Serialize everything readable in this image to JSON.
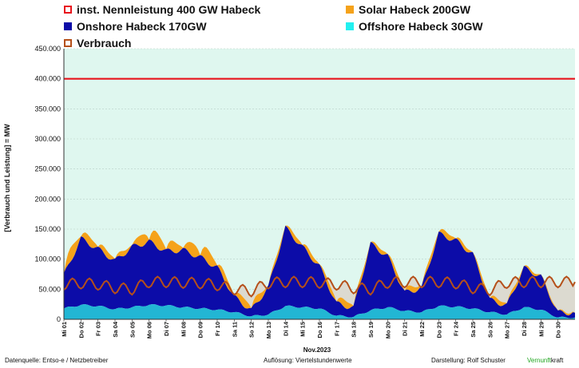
{
  "legend": {
    "nennleistung": "inst. Nennleistung 400 GW Habeck",
    "solar": "Solar Habeck 200GW",
    "onshore": "Onshore Habeck 170GW",
    "offshore": "Offshore Habeck 30GW",
    "verbrauch": "Verbrauch"
  },
  "footer": {
    "source": "Datenquelle: Entso-e  / Netzbetreiber",
    "resolution": "Auflösung: Viertelstundenwerte",
    "author": "Darstellung:  Rolf Schuster",
    "brand_part1": "Vernunft",
    "brand_part2": "kraft"
  },
  "colors": {
    "nennleistung": "#e8141c",
    "solar": "#f5a21a",
    "onshore": "#0c0ca8",
    "offshore": "#22b6d4",
    "verbrauch": "#b5501a",
    "background": "#dff7ef",
    "fill_gap": "#dcd6cc"
  },
  "chart_data": {
    "type": "area",
    "ylabel": "[Verbrauch und Leistung] =  MW",
    "xlabel": "Nov.2023",
    "ylim": [
      0,
      450000
    ],
    "yticks": [
      "0",
      "50.000",
      "100.000",
      "150.000",
      "200.000",
      "250.000",
      "300.000",
      "350.000",
      "400.000",
      "450.000"
    ],
    "ytick_values": [
      0,
      50000,
      100000,
      150000,
      200000,
      250000,
      300000,
      350000,
      400000,
      450000
    ],
    "categories": [
      "Mi 01",
      "Do 02",
      "Fr 03",
      "Sa 04",
      "So 05",
      "Mo 06",
      "Di 07",
      "Mi 08",
      "Do 09",
      "Fr 10",
      "Sa 11",
      "So 12",
      "Mo 13",
      "Di 14",
      "Mi 15",
      "Do 16",
      "Fr 17",
      "Sa 18",
      "So 19",
      "Mo 20",
      "Di 21",
      "Mi 22",
      "Do 23",
      "Fr 24",
      "Sa 25",
      "So 26",
      "Mo 27",
      "Di 28",
      "Mi 29",
      "Do 30"
    ],
    "nennleistung": 400000,
    "series": [
      {
        "name": "Offshore Habeck 30GW",
        "values": [
          18000,
          24000,
          22000,
          17000,
          20000,
          24000,
          23000,
          20000,
          18000,
          16000,
          12000,
          5000,
          8000,
          22000,
          20000,
          18000,
          6000,
          4000,
          15000,
          20000,
          14000,
          12000,
          22000,
          21000,
          18000,
          12000,
          8000,
          20000,
          16000,
          3000
        ]
      },
      {
        "name": "Onshore Habeck 170GW",
        "values": [
          55000,
          110000,
          95000,
          80000,
          100000,
          105000,
          90000,
          95000,
          85000,
          70000,
          25000,
          10000,
          45000,
          130000,
          100000,
          70000,
          20000,
          15000,
          110000,
          85000,
          30000,
          40000,
          120000,
          110000,
          90000,
          20000,
          15000,
          65000,
          55000,
          8000
        ]
      },
      {
        "name": "Solar Habeck 200GW",
        "values": [
          30000,
          18000,
          14000,
          10000,
          8000,
          30000,
          22000,
          15000,
          30000,
          18000,
          12000,
          18000,
          8000,
          8000,
          12000,
          8000,
          14000,
          12000,
          6000,
          10000,
          12000,
          8000,
          12000,
          10000,
          6000,
          10000,
          8000,
          6000,
          4000,
          3000
        ]
      },
      {
        "name": "Verbrauch",
        "values": [
          58000,
          60000,
          58000,
          52000,
          50000,
          62000,
          62000,
          61000,
          60000,
          57000,
          50000,
          47000,
          60000,
          62000,
          62000,
          61000,
          58000,
          52000,
          50000,
          61000,
          62000,
          62000,
          62000,
          60000,
          52000,
          49000,
          61000,
          62000,
          62000,
          62000
        ]
      }
    ]
  }
}
